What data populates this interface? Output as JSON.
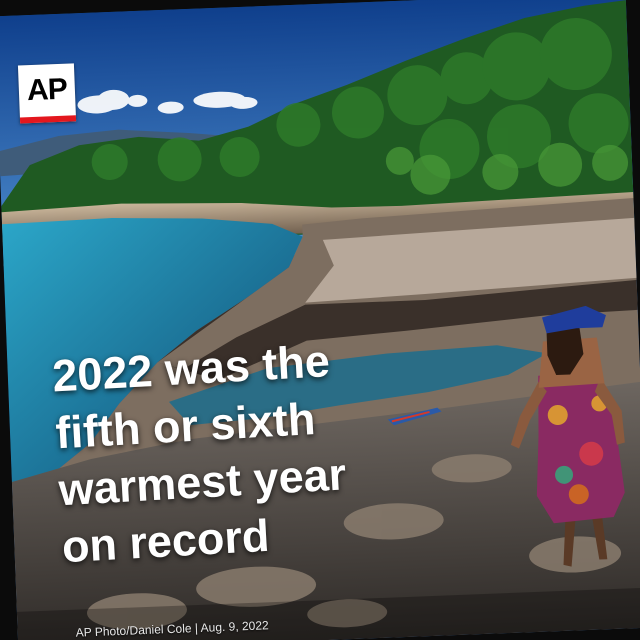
{
  "logo": {
    "text": "AP"
  },
  "headline": {
    "lines": [
      "2022 was the",
      "fifth or sixth",
      "warmest year",
      "on record"
    ]
  },
  "credit": {
    "text": "AP Photo/Daniel Cole | Aug. 9, 2022"
  },
  "colors": {
    "logo_red": "#e3171e",
    "sky": "#1d4f8a",
    "water": "#1f8fb0",
    "forest": "#1f5a22"
  }
}
